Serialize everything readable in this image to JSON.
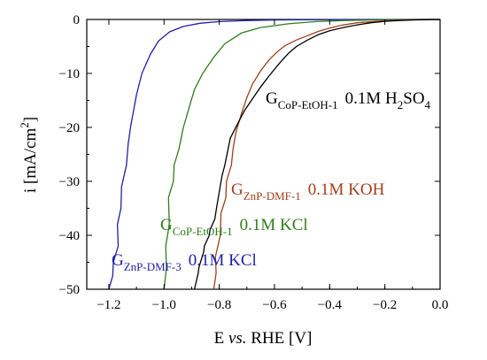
{
  "chart_data": {
    "type": "line",
    "xlabel": {
      "pre": "E ",
      "italic": "vs.",
      "post": " RHE [V]"
    },
    "ylabel": {
      "main": "i [mA/cm",
      "sup": "2",
      "close": "]"
    },
    "xlim": [
      -1.28,
      0.0
    ],
    "ylim": [
      -50,
      0
    ],
    "xticks": [
      -1.2,
      -1.0,
      -0.8,
      -0.6,
      -0.4,
      -0.2,
      0.0
    ],
    "xtick_labels": [
      "−1.2",
      "−1.0",
      "−0.8",
      "−0.6",
      "−0.4",
      "−0.2",
      "0.0"
    ],
    "yticks": [
      0,
      -10,
      -20,
      -30,
      -40,
      -50
    ],
    "ytick_labels": [
      "0",
      "−10",
      "−20",
      "−30",
      "−40",
      "−50"
    ],
    "grid": false,
    "series": [
      {
        "name": "G ZnP-DMF-3 0.1M KCl",
        "color": "#1f1fa8",
        "x": [
          -1.2,
          -1.19,
          -1.18,
          -1.17,
          -1.165,
          -1.16,
          -1.15,
          -1.14,
          -1.13,
          -1.12,
          -1.1,
          -1.08,
          -1.05,
          -1.02,
          -0.98,
          -0.93,
          -0.87,
          -0.8,
          -0.7,
          -0.6,
          -0.5,
          -0.4,
          -0.3,
          -0.2,
          -0.1,
          0.0
        ],
        "y": [
          -50,
          -47.5,
          -45,
          -42,
          -38,
          -35,
          -31,
          -27,
          -23,
          -19.5,
          -14,
          -10,
          -6.5,
          -4,
          -2.3,
          -1.3,
          -0.7,
          -0.4,
          -0.2,
          -0.1,
          -0.05,
          -0.03,
          -0.02,
          -0.01,
          0,
          0
        ]
      },
      {
        "name": "G CoP-EtOH-1 0.1M KCl",
        "color": "#2e7d1a",
        "x": [
          -1.0,
          -0.995,
          -0.99,
          -0.985,
          -0.98,
          -0.97,
          -0.96,
          -0.95,
          -0.93,
          -0.91,
          -0.89,
          -0.86,
          -0.82,
          -0.78,
          -0.72,
          -0.65,
          -0.55,
          -0.45,
          -0.35,
          -0.25,
          -0.1,
          0.0
        ],
        "y": [
          -50,
          -46,
          -42,
          -38,
          -33,
          -30,
          -27,
          -24,
          -20,
          -16.5,
          -13,
          -10,
          -7,
          -4.5,
          -2.5,
          -1.5,
          -0.8,
          -0.4,
          -0.2,
          -0.1,
          0,
          0
        ]
      },
      {
        "name": "G ZnP-DMF-1 0.1M KOH",
        "color": "#a0401a",
        "x": [
          -0.82,
          -0.815,
          -0.81,
          -0.8,
          -0.79,
          -0.78,
          -0.77,
          -0.76,
          -0.75,
          -0.74,
          -0.72,
          -0.7,
          -0.68,
          -0.65,
          -0.62,
          -0.59,
          -0.56,
          -0.52,
          -0.48,
          -0.44,
          -0.4,
          -0.36,
          -0.3,
          -0.2,
          -0.1,
          0.0
        ],
        "y": [
          -50,
          -47,
          -44,
          -40,
          -36,
          -33,
          -30,
          -27,
          -24,
          -21,
          -17.5,
          -14.5,
          -12,
          -9.5,
          -7.5,
          -6,
          -4.8,
          -3.8,
          -3,
          -2.2,
          -1.6,
          -1.1,
          -0.6,
          -0.25,
          -0.05,
          0
        ]
      },
      {
        "name": "G CoP-EtOH-1 0.1M H2SO4",
        "color": "#000000",
        "x": [
          -0.89,
          -0.88,
          -0.87,
          -0.86,
          -0.85,
          -0.84,
          -0.83,
          -0.82,
          -0.81,
          -0.8,
          -0.79,
          -0.78,
          -0.77,
          -0.76,
          -0.75,
          -0.73,
          -0.71,
          -0.69,
          -0.67,
          -0.65,
          -0.62,
          -0.58,
          -0.55,
          -0.52,
          -0.48,
          -0.44,
          -0.4,
          -0.35,
          -0.3,
          -0.25,
          -0.2,
          -0.15,
          -0.1,
          -0.05,
          0.0
        ],
        "y": [
          -50,
          -47,
          -46,
          -43,
          -42,
          -40,
          -39,
          -37,
          -35,
          -32,
          -29,
          -27,
          -24.5,
          -22,
          -21,
          -19,
          -17,
          -15.5,
          -14,
          -12.5,
          -10.5,
          -8,
          -6.3,
          -5,
          -3.8,
          -2.8,
          -2.1,
          -1.5,
          -1.0,
          -0.6,
          -0.35,
          -0.2,
          -0.1,
          -0.03,
          0
        ]
      }
    ],
    "annotations": [
      {
        "main": "G",
        "sub": "ZnP-DMF-3",
        "tail": "0.1M KCl",
        "color": "#1f1fa8"
      },
      {
        "main": "G",
        "sub": "CoP-EtOH-1",
        "tail": "0.1M KCl",
        "color": "#2e7d1a"
      },
      {
        "main": "G",
        "sub": "ZnP-DMF-1",
        "tail": "0.1M KOH",
        "color": "#a0401a"
      },
      {
        "main": "G",
        "sub": "CoP-EtOH-1",
        "tail": "0.1M H",
        "tail_sub": "2",
        "tail_end": "SO",
        "tail_sub2": "4",
        "color": "#000000"
      }
    ]
  }
}
